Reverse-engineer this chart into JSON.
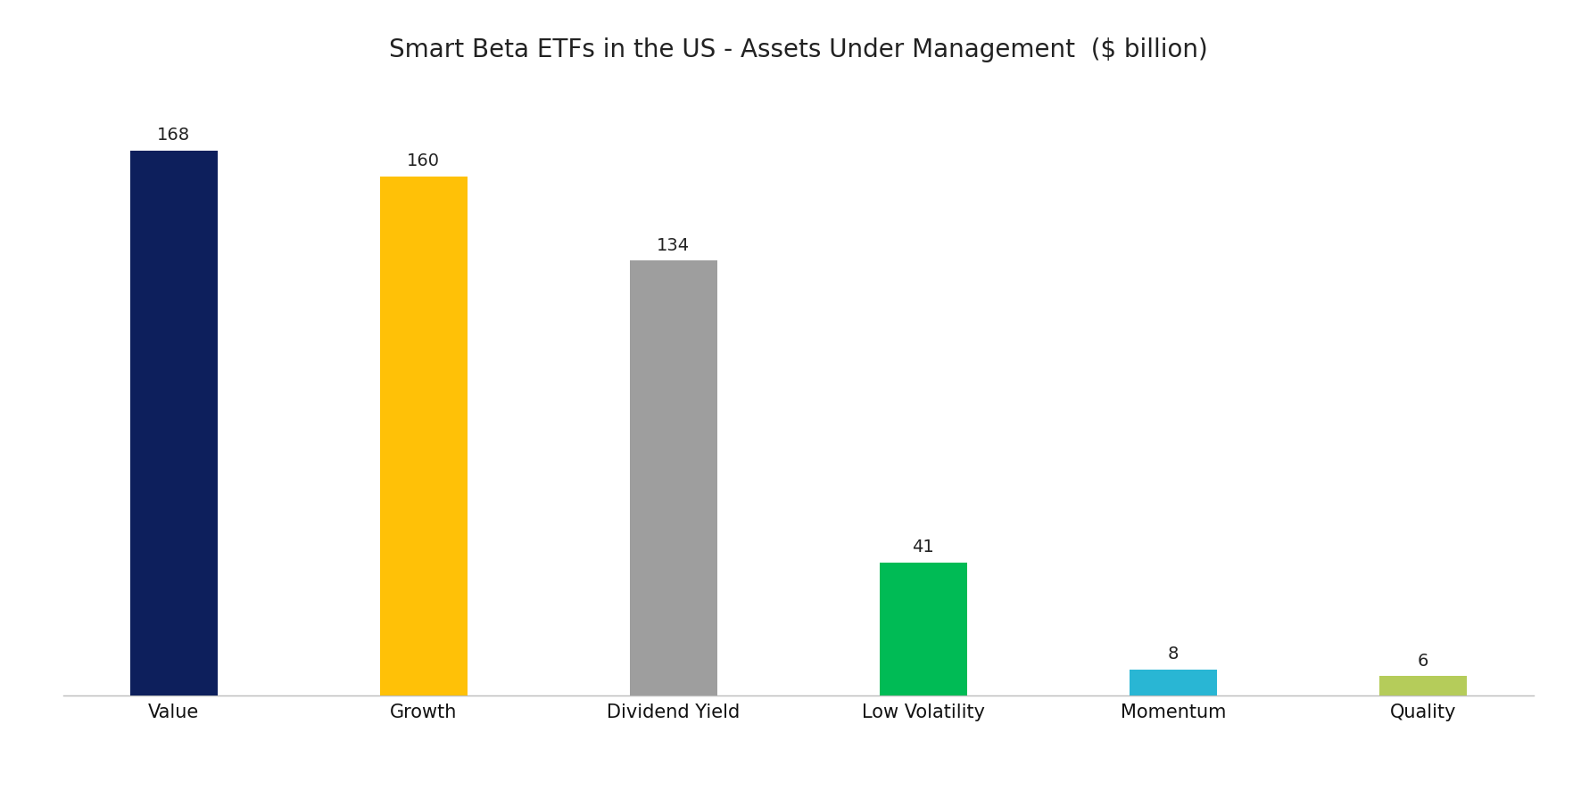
{
  "title": "Smart Beta ETFs in the US - Assets Under Management  ($ billion)",
  "categories": [
    "Value",
    "Growth",
    "Dividend Yield",
    "Low Volatility",
    "Momentum",
    "Quality"
  ],
  "values": [
    168,
    160,
    134,
    41,
    8,
    6
  ],
  "bar_colors": [
    "#0d1f5c",
    "#ffc107",
    "#9e9e9e",
    "#00bb55",
    "#29b6d4",
    "#b5cc5a"
  ],
  "background_color": "#ffffff",
  "title_fontsize": 20,
  "label_fontsize": 15,
  "value_fontsize": 14,
  "bar_width": 0.35,
  "ylim": [
    0,
    190
  ]
}
